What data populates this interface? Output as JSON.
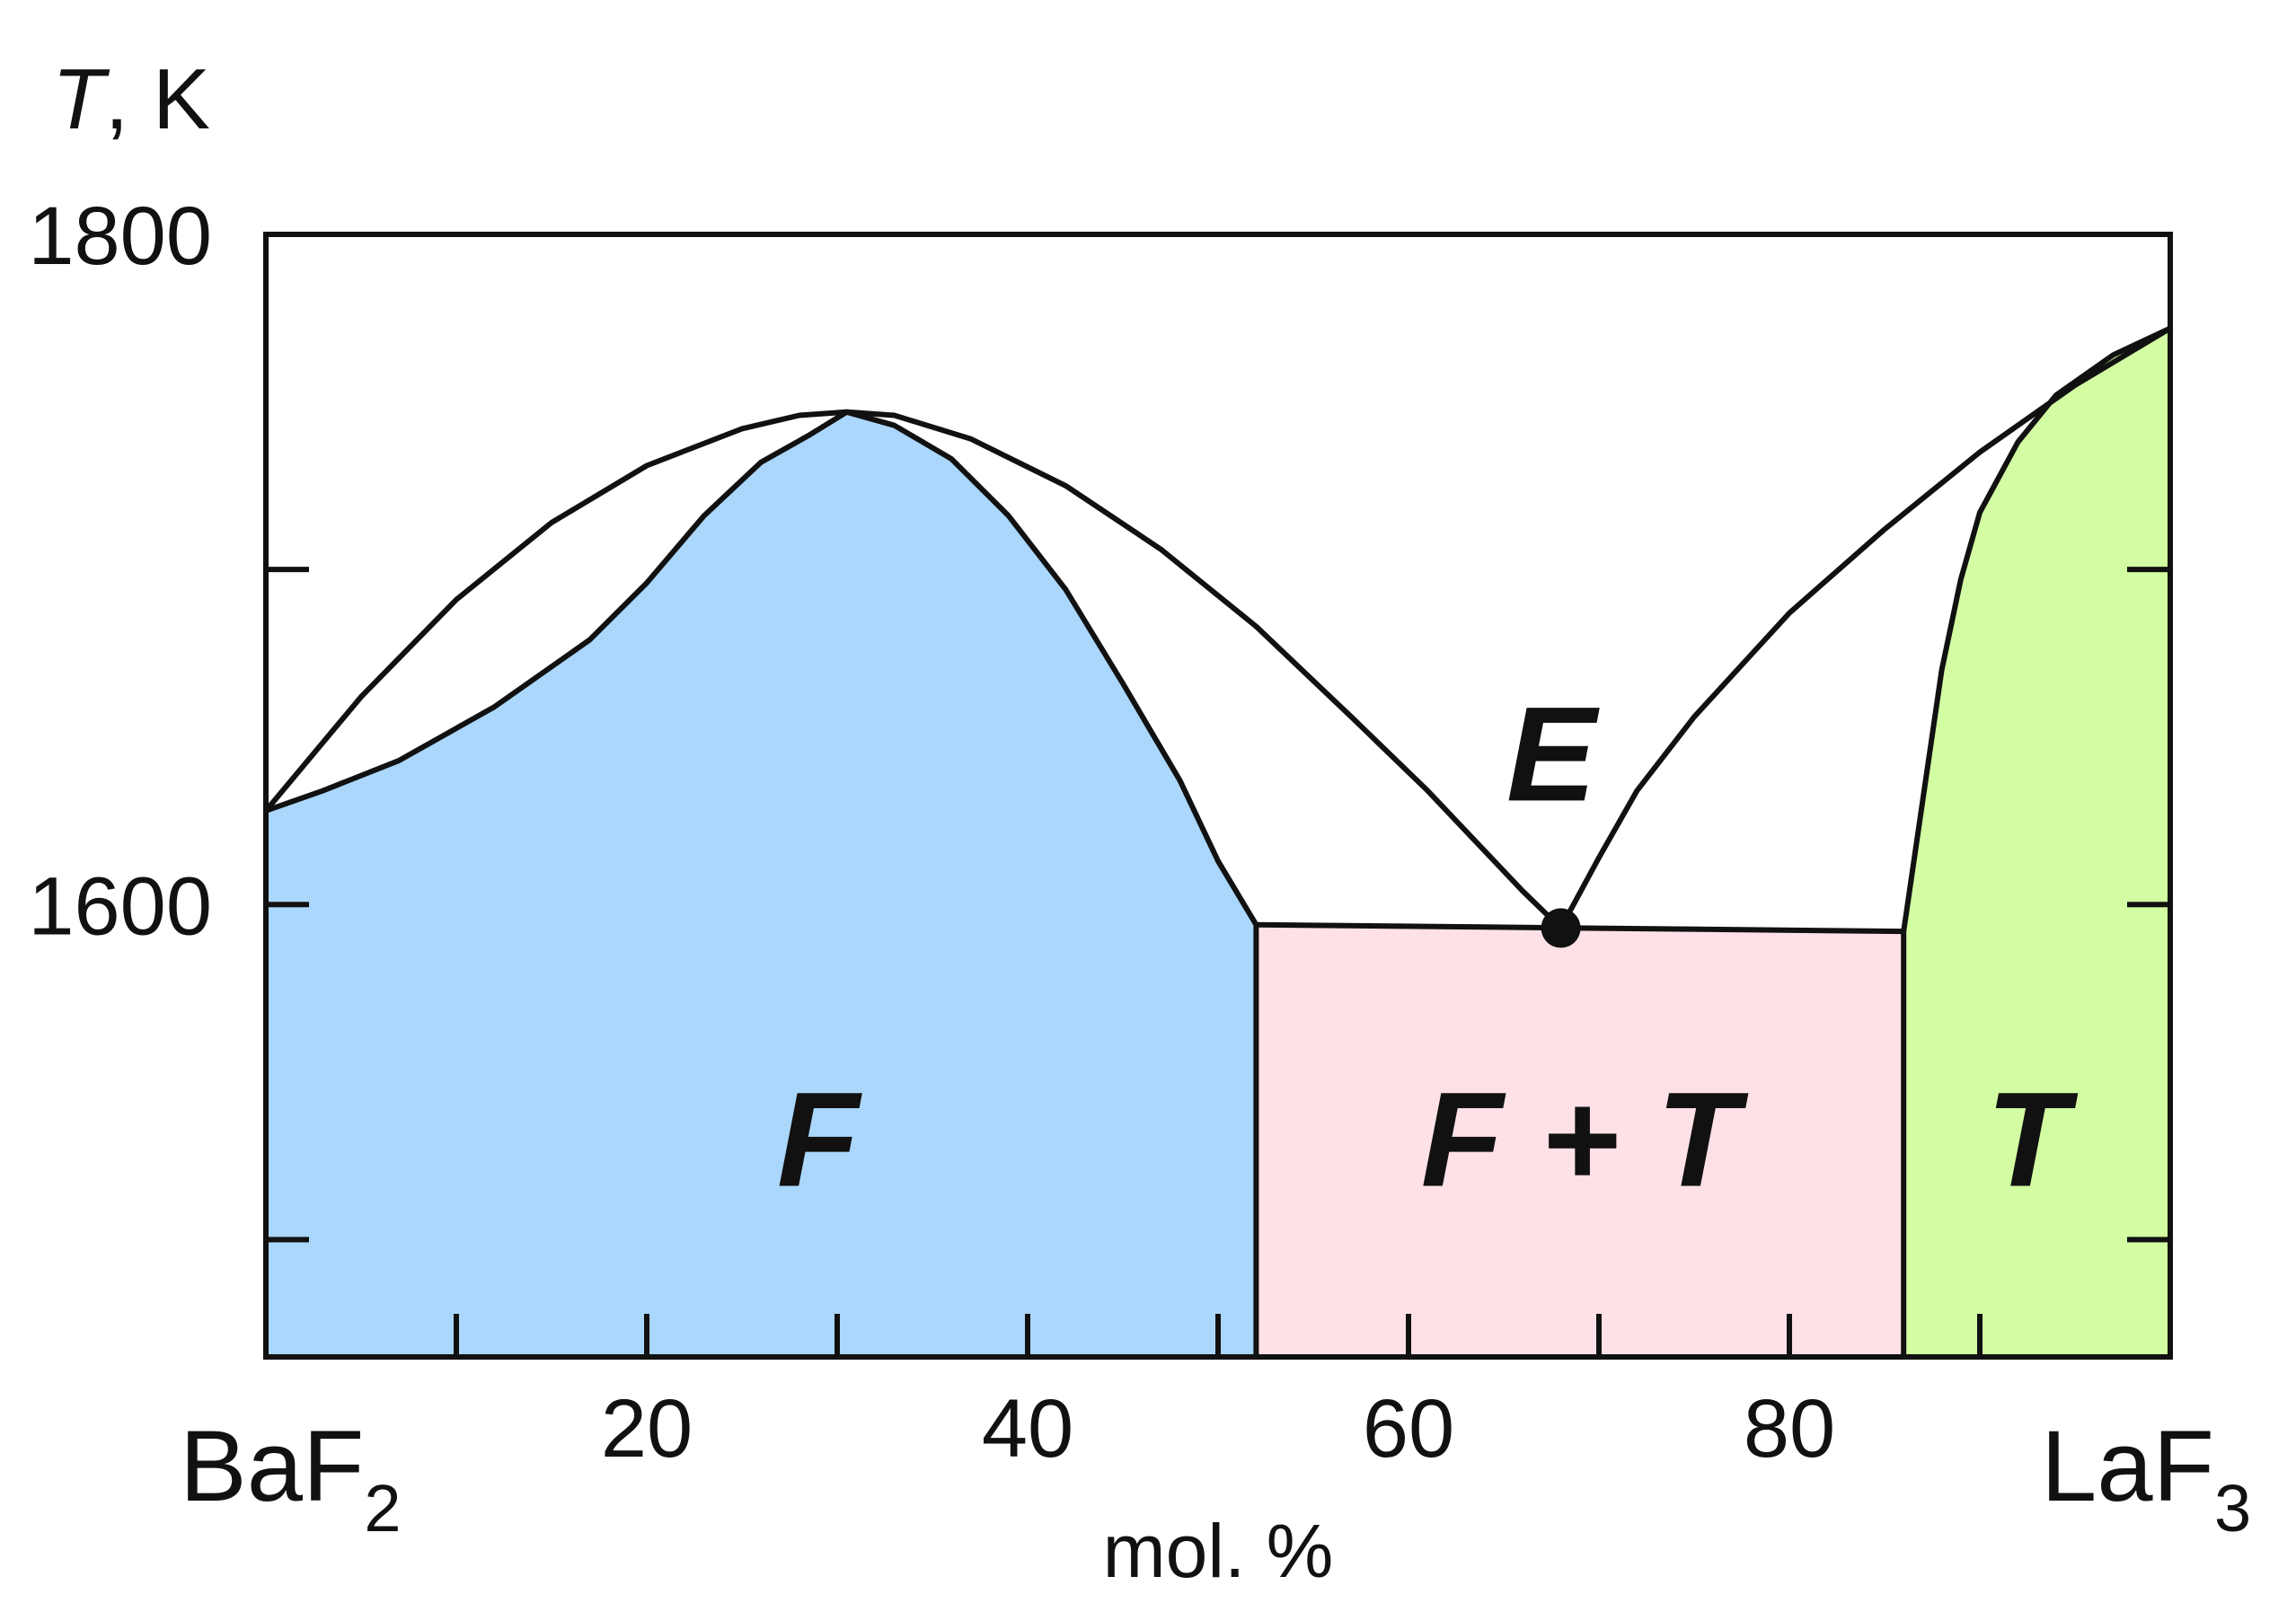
{
  "chart_data": {
    "type": "phase-diagram",
    "title": "",
    "xlabel": "mol. %",
    "ylabel_italic": "T",
    "ylabel_rest": ", K",
    "xlim": [
      0,
      100
    ],
    "ylim": [
      1465,
      1800
    ],
    "x_ticks_labeled": [
      20,
      40,
      60,
      80
    ],
    "x_ticks_minor": [
      10,
      30,
      50,
      70,
      90
    ],
    "y_ticks_labeled": [
      1600,
      1800
    ],
    "y_ticks_minor": [
      1500,
      1700
    ],
    "left_component": {
      "base": "BaF",
      "sub": "2"
    },
    "right_component": {
      "base": "LaF",
      "sub": "3"
    },
    "colors": {
      "F_region": "#aad7fb",
      "FT_region": "#fde1e6",
      "T_region": "#d3fda2",
      "line": "#111111"
    },
    "regions": [
      {
        "id": "F",
        "label": "F",
        "label_pos": [
          29,
          1530
        ]
      },
      {
        "id": "FT",
        "label": "F + T",
        "label_pos": [
          69,
          1530
        ]
      },
      {
        "id": "T",
        "label": "T",
        "label_pos": [
          92.5,
          1530
        ]
      },
      {
        "id": "E",
        "label": "E",
        "label_pos": [
          67.5,
          1645
        ]
      }
    ],
    "eutectic": {
      "x": 68,
      "y": 1593
    },
    "curves": {
      "liquidus_left": [
        [
          0,
          1628
        ],
        [
          5,
          1662
        ],
        [
          10,
          1691
        ],
        [
          15,
          1714
        ],
        [
          20,
          1731
        ],
        [
          25,
          1742
        ],
        [
          28,
          1746
        ],
        [
          30.5,
          1747
        ],
        [
          33,
          1746
        ],
        [
          37,
          1739
        ],
        [
          42,
          1725
        ],
        [
          47,
          1706
        ],
        [
          52,
          1683
        ],
        [
          57,
          1656
        ],
        [
          61,
          1634
        ],
        [
          64,
          1616
        ],
        [
          66,
          1604
        ],
        [
          68,
          1593
        ]
      ],
      "solidus_F": [
        [
          0,
          1628
        ],
        [
          3,
          1634
        ],
        [
          7,
          1643
        ],
        [
          12,
          1659
        ],
        [
          17,
          1679
        ],
        [
          20,
          1696
        ],
        [
          23,
          1716
        ],
        [
          26,
          1732
        ],
        [
          28.5,
          1740
        ],
        [
          30.5,
          1747
        ],
        [
          33,
          1743
        ],
        [
          36,
          1733
        ],
        [
          39,
          1716
        ],
        [
          42,
          1694
        ],
        [
          45,
          1666
        ],
        [
          48,
          1637
        ],
        [
          50,
          1613
        ],
        [
          52,
          1594
        ]
      ],
      "liquidus_right": [
        [
          68,
          1593
        ],
        [
          70,
          1614
        ],
        [
          72,
          1634
        ],
        [
          75,
          1656
        ],
        [
          80,
          1687
        ],
        [
          85,
          1712
        ],
        [
          90,
          1735
        ],
        [
          95,
          1755
        ],
        [
          100,
          1772
        ]
      ],
      "solidus_T": [
        [
          86,
          1592
        ],
        [
          87,
          1631
        ],
        [
          88,
          1670
        ],
        [
          89,
          1697
        ],
        [
          90,
          1717
        ],
        [
          92,
          1738
        ],
        [
          94,
          1752
        ],
        [
          97,
          1764
        ],
        [
          100,
          1772
        ]
      ],
      "eutectic_line": [
        [
          52,
          1594
        ],
        [
          86,
          1592
        ]
      ],
      "F_boundary_vertical": [
        [
          52,
          1465
        ],
        [
          52,
          1594
        ]
      ],
      "T_boundary_vertical": [
        [
          86,
          1465
        ],
        [
          86,
          1592
        ]
      ]
    }
  }
}
